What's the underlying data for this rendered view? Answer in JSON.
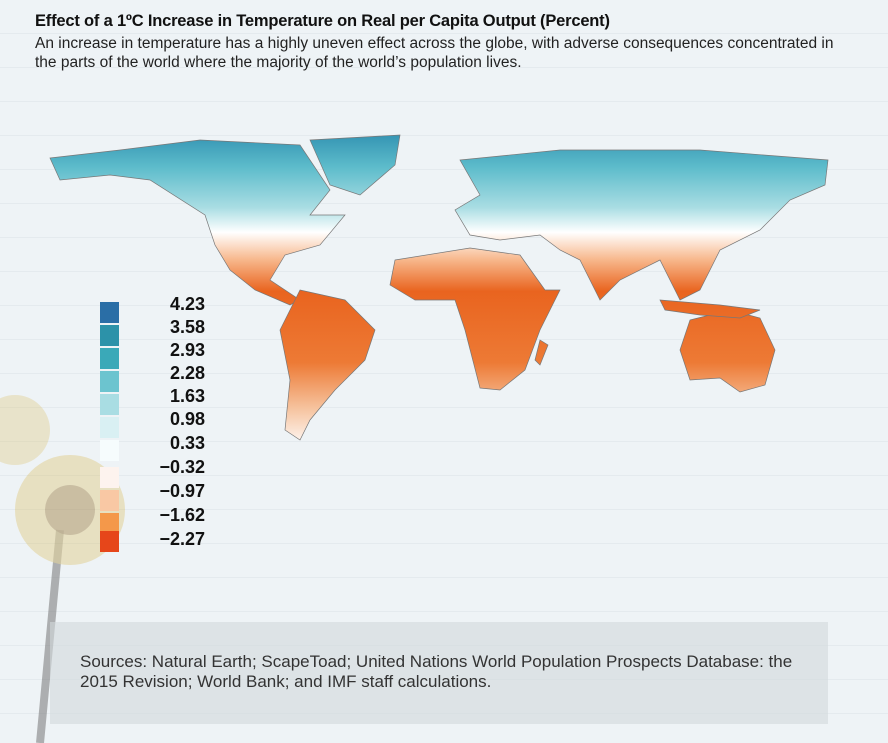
{
  "title": "Effect of a 1ºC Increase in Temperature on Real per Capita Output (Percent)",
  "subtitle": "An increase in temperature has a highly uneven effect across the globe, with adverse consequences concentrated in the parts of the world where the majority of the world’s population lives.",
  "legend": {
    "items": [
      {
        "label": "4.23",
        "color": "#2a6ea6"
      },
      {
        "label": "3.58",
        "color": "#2c92a9"
      },
      {
        "label": "2.93",
        "color": "#3aa9b8"
      },
      {
        "label": "2.28",
        "color": "#6cc4cf"
      },
      {
        "label": "1.63",
        "color": "#a9dde3"
      },
      {
        "label": "0.98",
        "color": "#d9f0f3"
      },
      {
        "label": "0.33",
        "color": "#f6fcfd"
      },
      {
        "label": "−0.32",
        "color": "#fdf3ee"
      },
      {
        "label": "−0.97",
        "color": "#f9c8a4"
      },
      {
        "label": "−1.62",
        "color": "#f4984a"
      },
      {
        "label": "−2.27",
        "color": "#e6461a"
      }
    ]
  },
  "sources": "Sources: Natural Earth; ScapeToad; United Nations World Population Prospects Database: the 2015 Revision; World Bank; and IMF staff calculations."
}
